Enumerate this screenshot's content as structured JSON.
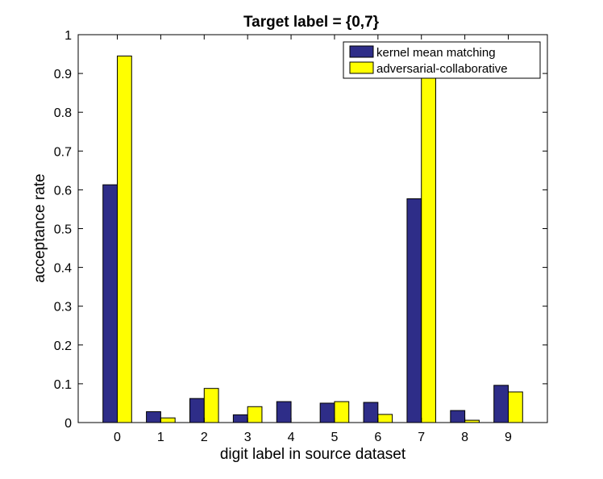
{
  "chart_data": {
    "type": "bar",
    "title": "Target label = {0,7}",
    "xlabel": "digit label in source dataset",
    "ylabel": "acceptance rate",
    "categories": [
      "0",
      "1",
      "2",
      "3",
      "4",
      "5",
      "6",
      "7",
      "8",
      "9"
    ],
    "y_ticks": [
      "0",
      "0.1",
      "0.2",
      "0.3",
      "0.4",
      "0.5",
      "0.6",
      "0.7",
      "0.8",
      "0.9",
      "1"
    ],
    "ylim": [
      0,
      1
    ],
    "grid": false,
    "legend_position": "top-right",
    "series": [
      {
        "name": "kernel mean matching",
        "color": "#2e2d88",
        "values": [
          0.613,
          0.028,
          0.062,
          0.02,
          0.054,
          0.05,
          0.052,
          0.577,
          0.031,
          0.096
        ]
      },
      {
        "name": "adversarial-collaborative",
        "color": "#ffff00",
        "values": [
          0.945,
          0.012,
          0.088,
          0.041,
          0.0,
          0.054,
          0.021,
          0.9,
          0.006,
          0.079
        ]
      }
    ]
  }
}
